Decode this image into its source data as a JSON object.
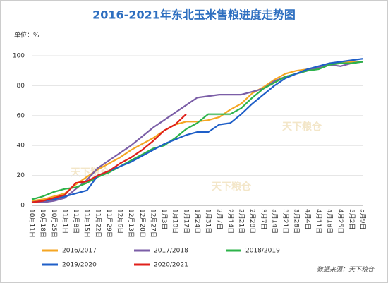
{
  "chart_data": {
    "type": "line",
    "title": "2016-2021年东北玉米售粮进度走势图",
    "unit_label": "单位：%",
    "source": "数据来源：天下粮仓",
    "watermark": "天下粮仓",
    "categories": [
      "10月11日",
      "10月18日",
      "10月25日",
      "11月1日",
      "11月8日",
      "11月15日",
      "11月22日",
      "11月29日",
      "12月6日",
      "12月13日",
      "12月20日",
      "12月27日",
      "1月3日",
      "1月10日",
      "1月17日",
      "1月24日",
      "1月31日",
      "2月7日",
      "2月14日",
      "2月21日",
      "2月28日",
      "3月7日",
      "3月14日",
      "3月21日",
      "3月28日",
      "4月4日",
      "4月11日",
      "4月18日",
      "4月25日",
      "5月2日",
      "5月9日"
    ],
    "series": [
      {
        "name": "2016/2017",
        "color": "#f5a623",
        "values": [
          3,
          4,
          6,
          8,
          14,
          19,
          24,
          28,
          32,
          37,
          41,
          45,
          50,
          54,
          56,
          56,
          57,
          59,
          64,
          68,
          75,
          79,
          84,
          88,
          90,
          91,
          92,
          94,
          95,
          96,
          96
        ]
      },
      {
        "name": "2017/2018",
        "color": "#7b5ea7",
        "values": [
          2,
          2,
          3,
          5,
          11,
          17,
          25,
          30,
          35,
          40,
          46,
          52,
          57,
          62,
          67,
          72,
          73,
          74,
          74,
          74,
          76,
          78,
          83,
          86,
          88,
          90,
          92,
          94,
          93,
          95,
          96
        ]
      },
      {
        "name": "2018/2019",
        "color": "#2db34a",
        "values": [
          4,
          6,
          9,
          11,
          12,
          15,
          19,
          22,
          26,
          30,
          34,
          38,
          40,
          45,
          51,
          55,
          61,
          61,
          61,
          65,
          72,
          78,
          82,
          86,
          88,
          90,
          91,
          94,
          95,
          95,
          96
        ]
      },
      {
        "name": "2019/2020",
        "color": "#1f5fc8",
        "values": [
          2,
          3,
          4,
          6,
          8,
          10,
          20,
          23,
          26,
          29,
          33,
          37,
          41,
          44,
          47,
          49,
          49,
          54,
          55,
          61,
          68,
          74,
          80,
          85,
          88,
          91,
          93,
          95,
          96,
          97,
          98
        ]
      },
      {
        "name": "2020/2021",
        "color": "#e0201b",
        "values": [
          2,
          3,
          5,
          7,
          15,
          16,
          20,
          23,
          28,
          32,
          37,
          43,
          50,
          54,
          61,
          null,
          null,
          null,
          null,
          null,
          null,
          null,
          null,
          null,
          null,
          null,
          null,
          null,
          null,
          null,
          null
        ]
      }
    ],
    "ylim": [
      0,
      100
    ],
    "yticks": [
      0,
      20,
      40,
      60,
      80,
      100
    ],
    "grid": true
  }
}
